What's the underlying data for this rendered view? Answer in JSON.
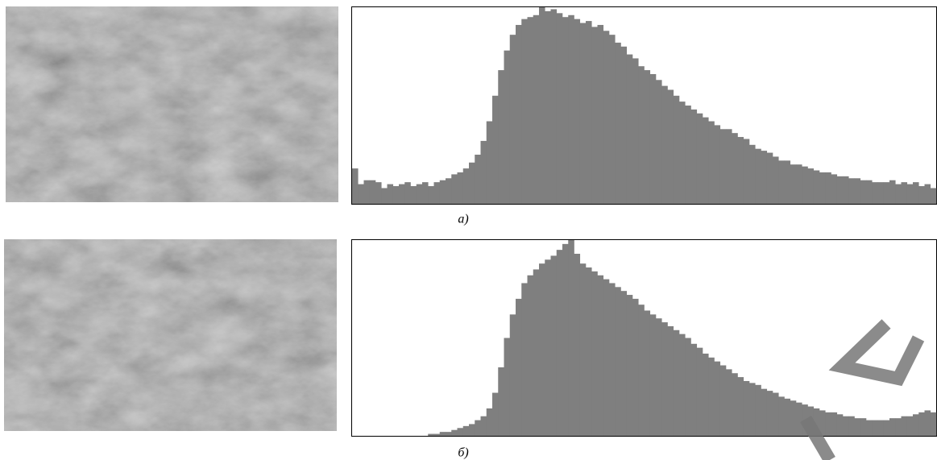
{
  "panels": [
    {
      "label": "а)"
    },
    {
      "label": "б)"
    }
  ],
  "chart_data": [
    {
      "type": "bar",
      "color": "#7f7f7f",
      "ylim": [
        0,
        100
      ],
      "values": [
        18,
        10,
        12,
        12,
        11,
        8,
        10,
        9,
        10,
        11,
        9,
        10,
        11,
        9,
        11,
        12,
        13,
        15,
        16,
        18,
        21,
        25,
        32,
        42,
        55,
        68,
        78,
        86,
        91,
        94,
        95,
        96,
        100,
        98,
        99,
        97,
        95,
        96,
        94,
        92,
        93,
        90,
        91,
        88,
        86,
        82,
        80,
        76,
        74,
        70,
        68,
        66,
        63,
        60,
        58,
        55,
        52,
        50,
        48,
        46,
        44,
        42,
        40,
        38,
        38,
        36,
        34,
        33,
        30,
        28,
        27,
        26,
        24,
        22,
        22,
        20,
        20,
        19,
        18,
        17,
        16,
        16,
        15,
        14,
        14,
        13,
        13,
        12,
        12,
        11,
        11,
        11,
        12,
        10,
        11,
        10,
        11,
        9,
        10,
        8
      ]
    },
    {
      "type": "bar",
      "color": "#7f7f7f",
      "ylim": [
        0,
        100
      ],
      "values": [
        0,
        0,
        0,
        0,
        0,
        0,
        0,
        0,
        0,
        0,
        0,
        0,
        0,
        1,
        1,
        2,
        2,
        3,
        4,
        5,
        6,
        8,
        10,
        14,
        22,
        35,
        50,
        62,
        70,
        78,
        82,
        85,
        88,
        90,
        92,
        95,
        98,
        100,
        93,
        88,
        86,
        84,
        82,
        80,
        78,
        76,
        74,
        72,
        70,
        67,
        64,
        62,
        60,
        58,
        56,
        54,
        52,
        50,
        47,
        45,
        42,
        40,
        38,
        36,
        34,
        32,
        30,
        28,
        27,
        26,
        24,
        23,
        22,
        20,
        19,
        18,
        17,
        16,
        15,
        14,
        13,
        12,
        12,
        11,
        10,
        10,
        9,
        9,
        8,
        8,
        8,
        8,
        9,
        9,
        10,
        10,
        11,
        12,
        13,
        12
      ]
    }
  ]
}
